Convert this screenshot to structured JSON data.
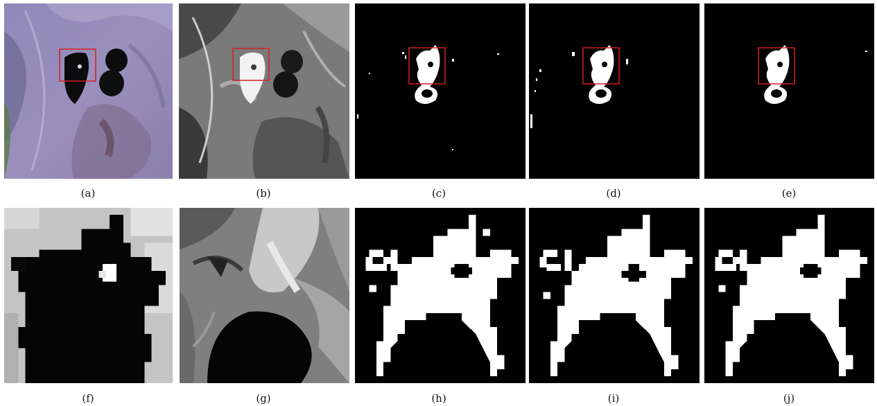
{
  "captions": {
    "a": "(a)",
    "b": "(b)",
    "c": "(c)",
    "d": "(d)",
    "e": "(e)",
    "f": "(f)",
    "g": "(g)",
    "h": "(h)",
    "i": "(i)",
    "j": "(j)"
  },
  "colors": {
    "highlight_box": "#d42020",
    "mask_foreground": "#ffffff",
    "mask_background": "#000000",
    "page_background": "#ffffff"
  }
}
